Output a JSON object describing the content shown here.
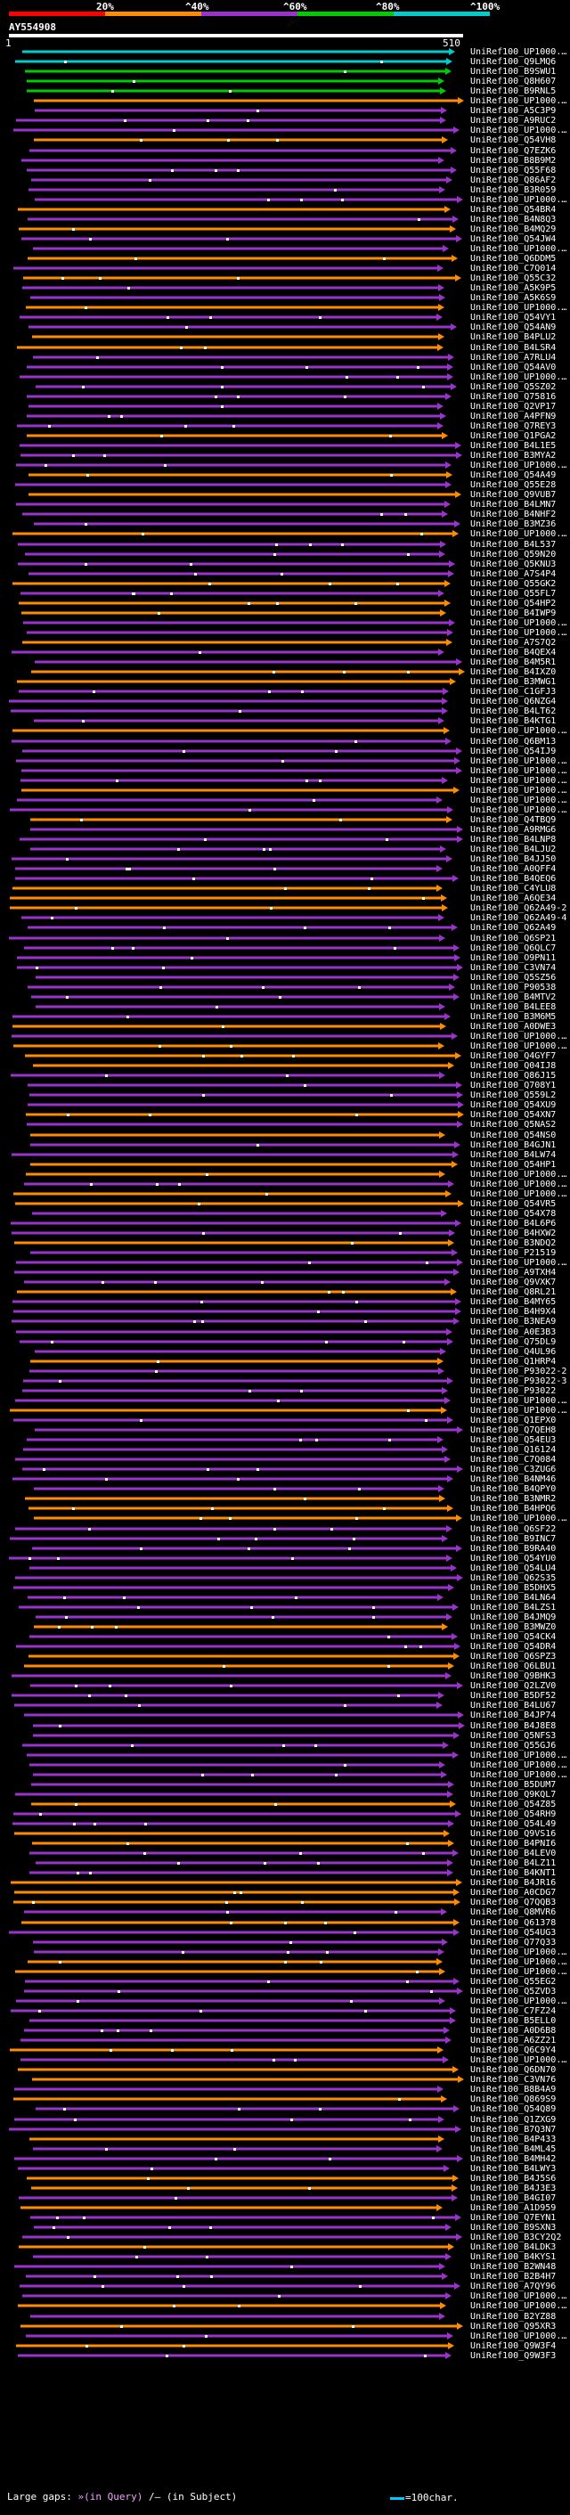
{
  "legend": {
    "labels": [
      "20%",
      "^40%",
      "^60%",
      "^80%",
      "^100%"
    ],
    "colors": [
      "#ff0000",
      "#ff8c00",
      "#9933cc",
      "#00cc00",
      "#00cccc"
    ]
  },
  "accession": "AY554908",
  "query": {
    "start": "1",
    "end": "510"
  },
  "rows": [
    "UniRef100_UP1000...",
    "UniRef100_Q9LMQ6",
    "UniRef100_B9SWU1",
    "UniRef100_Q8H607",
    "UniRef100_B9RNL5",
    "UniRef100_UP1000...",
    "UniRef100_A5C3P9",
    "UniRef100_A9RUC2",
    "UniRef100_UP1000...",
    "UniRef100_Q54VH8",
    "UniRef100_Q7EZK6",
    "UniRef100_B8B9M2",
    "UniRef100_Q55F68",
    "UniRef100_Q86AF2",
    "UniRef100_B3R059",
    "UniRef100_UP1000...",
    "UniRef100_Q54BR4",
    "UniRef100_B4N8Q3",
    "UniRef100_B4MQ29",
    "UniRef100_Q54JW4",
    "UniRef100_UP1000...",
    "UniRef100_Q6DDM5",
    "UniRef100_C7Q014",
    "UniRef100_Q55C32",
    "UniRef100_A5K9P5",
    "UniRef100_A5K6S9",
    "UniRef100_UP1000...",
    "UniRef100_Q54VY1",
    "UniRef100_Q54AN9",
    "UniRef100_B4PLU2",
    "UniRef100_B4LSR4",
    "UniRef100_A7RLU4",
    "UniRef100_Q54AV0",
    "UniRef100_UP1000...",
    "UniRef100_Q5SZ02",
    "UniRef100_Q75816",
    "UniRef100_Q2VP17",
    "UniRef100_A4PFN9",
    "UniRef100_Q7REY3",
    "UniRef100_Q1PGA2",
    "UniRef100_B4L1E5",
    "UniRef100_B3MYA2",
    "UniRef100_UP1000...",
    "UniRef100_Q54A49",
    "UniRef100_Q55E28",
    "UniRef100_Q9VUB7",
    "UniRef100_B4LMN7",
    "UniRef100_B4NHF2",
    "UniRef100_B3MZ36",
    "UniRef100_UP1000...",
    "UniRef100_B4L537",
    "UniRef100_Q59N20",
    "UniRef100_Q5KNU3",
    "UniRef100_A7S4P4",
    "UniRef100_Q55GK2",
    "UniRef100_Q55FL7",
    "UniRef100_Q54HP2",
    "UniRef100_B4IWP9",
    "UniRef100_UP1000...",
    "UniRef100_UP1000...",
    "UniRef100_A7S7Q2",
    "UniRef100_B4QEX4",
    "UniRef100_B4M5R1",
    "UniRef100_B4IXZ0",
    "UniRef100_B3MWG1",
    "UniRef100_C1GFJ3",
    "UniRef100_Q6NZG4",
    "UniRef100_B4LT62",
    "UniRef100_B4KTG1",
    "UniRef100_UP1000...",
    "UniRef100_Q6BM13",
    "UniRef100_Q54IJ9",
    "UniRef100_UP1000...",
    "UniRef100_UP1000...",
    "UniRef100_UP1000...",
    "UniRef100_UP1000...",
    "UniRef100_UP1000...",
    "UniRef100_UP1000...",
    "UniRef100_Q4TBQ9",
    "UniRef100_A9RMG6",
    "UniRef100_B4LNP8",
    "UniRef100_B4LJU2",
    "UniRef100_B4JJ50",
    "UniRef100_A0QFF4",
    "UniRef100_B4QEQ6",
    "UniRef100_C4YLU8",
    "UniRef100_A6QE34",
    "UniRef100_Q62A49-2",
    "UniRef100_Q62A49-4",
    "UniRef100_Q62A49",
    "UniRef100_Q6SP21",
    "UniRef100_Q6QLC7",
    "UniRef100_O9PN11",
    "UniRef100_C3VN74",
    "UniRef100_Q5SZ56",
    "UniRef100_P90538",
    "UniRef100_B4MTV2",
    "UniRef100_B4LEE8",
    "UniRef100_B3M6M5",
    "UniRef100_A0DWE3",
    "UniRef100_UP1000...",
    "UniRef100_UP1000...",
    "UniRef100_Q4GYF7",
    "UniRef100_Q04IJ8",
    "UniRef100_Q86J15",
    "UniRef100_Q708Y1",
    "UniRef100_Q559L2",
    "UniRef100_Q54XU9",
    "UniRef100_Q54XN7",
    "UniRef100_Q5NAS2",
    "UniRef100_Q54NS0",
    "UniRef100_B4GJN1",
    "UniRef100_B4LW74",
    "UniRef100_Q54HP1",
    "UniRef100_UP1000...",
    "UniRef100_UP1000...",
    "UniRef100_UP1000...",
    "UniRef100_Q54VR5",
    "UniRef100_Q54X78",
    "UniRef100_B4L6P6",
    "UniRef100_B4HXW2",
    "UniRef100_B3NDQ2",
    "UniRef100_P21519",
    "UniRef100_UP1000...",
    "UniRef100_A9TXH4",
    "UniRef100_Q9VXK7",
    "UniRef100_Q8RL21",
    "UniRef100_B4MY65",
    "UniRef100_B4H9X4",
    "UniRef100_B3NEA9",
    "UniRef100_A0E3B3",
    "UniRef100_Q75DL9",
    "UniRef100_Q4UL96",
    "UniRef100_Q1HRP4",
    "UniRef100_P93022-2",
    "UniRef100_P93022-3",
    "UniRef100_P93022",
    "UniRef100_UP1000...",
    "UniRef100_UP1000...",
    "UniRef100_Q1EPX0",
    "UniRef100_Q7QEH8",
    "UniRef100_Q54EU3",
    "UniRef100_Q16124",
    "UniRef100_C7Q084",
    "UniRef100_C3ZUG6",
    "UniRef100_B4NM46",
    "UniRef100_B4QPY0",
    "UniRef100_B3NMR2",
    "UniRef100_B4HPQ6",
    "UniRef100_UP1000...",
    "UniRef100_Q6SF22",
    "UniRef100_B9INC7",
    "UniRef100_B9RA40",
    "UniRef100_Q54YU0",
    "UniRef100_Q54LU4",
    "UniRef100_Q62S35",
    "UniRef100_B5DHX5",
    "UniRef100_B4LN64",
    "UniRef100_B4LZS1",
    "UniRef100_B4JMQ9",
    "UniRef100_B3MWZ0",
    "UniRef100_Q54CK4",
    "UniRef100_Q54DR4",
    "UniRef100_Q6SPZ3",
    "UniRef100_Q6LBU1",
    "UniRef100_Q9BHK3",
    "UniRef100_Q2LZV0",
    "UniRef100_B5DF52",
    "UniRef100_B4LU67",
    "UniRef100_B4JP74",
    "UniRef100_B4J8E8",
    "UniRef100_Q5NFS3",
    "UniRef100_Q55GJ6",
    "UniRef100_UP1000...",
    "UniRef100_UP1000...",
    "UniRef100_UP1000...",
    "UniRef100_B5DUM7",
    "UniRef100_Q9KQL7",
    "UniRef100_Q54Z85",
    "UniRef100_Q54RH9",
    "UniRef100_Q54L49",
    "UniRef100_Q9VS16",
    "UniRef100_B4PNI6",
    "UniRef100_B4LEV0",
    "UniRef100_B4LZ11",
    "UniRef100_B4KNT1",
    "UniRef100_B4JR16",
    "UniRef100_A0CDG7",
    "UniRef100_Q7QQB3",
    "UniRef100_Q8MVR6",
    "UniRef100_Q61378",
    "UniRef100_Q54UG3",
    "UniRef100_Q77Q33",
    "UniRef100_UP1000...",
    "UniRef100_UP1000...",
    "UniRef100_UP1000...",
    "UniRef100_Q55EG2",
    "UniRef100_Q5ZVD3",
    "UniRef100_UP1000...",
    "UniRef100_C7FZ24",
    "UniRef100_B5ELL0",
    "UniRef100_A0D6B8",
    "UniRef100_A6ZZ21",
    "UniRef100_Q6C9Y4",
    "UniRef100_UP1000...",
    "UniRef100_Q6DN70",
    "UniRef100_C3VN76",
    "UniRef100_B8B4A9",
    "UniRef100_Q869S9",
    "UniRef100_Q54Q89",
    "UniRef100_Q1ZXG9",
    "UniRef100_B7Q3N7",
    "UniRef100_B4P433",
    "UniRef100_B4ML45",
    "UniRef100_B4MH42",
    "UniRef100_B4LWY3",
    "UniRef100_B4J5S6",
    "UniRef100_B4J3E3",
    "UniRef100_B4GI07",
    "UniRef100_A1D959",
    "UniRef100_Q7EYN1",
    "UniRef100_B9SXN3",
    "UniRef100_B3CY2Q2",
    "UniRef100_B4LDK3",
    "UniRef100_B4KYS1",
    "UniRef100_B2WN48",
    "UniRef100_B2B4H7",
    "UniRef100_A7QY96",
    "UniRef100_UP1000...",
    "UniRef100_UP1000...",
    "UniRef100_B2YZ88",
    "UniRef100_Q95XR3",
    "UniRef100_UP1000...",
    "UniRef100_Q9W3F4",
    "UniRef100_Q9W3F3"
  ],
  "footer": {
    "label": "Large gaps:",
    "query_gap": "»(in Query)",
    "subject_gap": "/– (in Subject)",
    "scale": "=100char."
  }
}
